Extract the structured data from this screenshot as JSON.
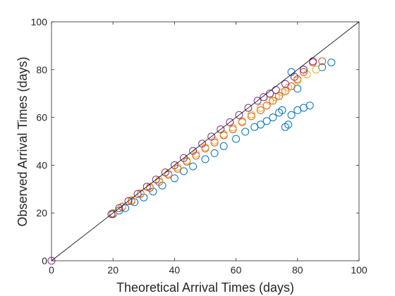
{
  "chart_data": {
    "type": "scatter",
    "title": "",
    "xlabel": "Theoretical Arrival Times (days)",
    "ylabel": "Observed Arrival Times (days)",
    "xlim": [
      0,
      100
    ],
    "ylim": [
      0,
      100
    ],
    "xticks": [
      0,
      20,
      40,
      60,
      80,
      100
    ],
    "yticks": [
      0,
      20,
      40,
      60,
      80,
      100
    ],
    "grid": false,
    "legend": "none",
    "reference_line": {
      "label": "",
      "x": [
        0,
        100
      ],
      "y": [
        0,
        100
      ],
      "color": "#000000"
    },
    "series": [
      {
        "color": "#0072BD",
        "marker": "circle",
        "x": [
          20,
          22,
          24,
          27,
          30,
          33,
          36,
          40,
          43,
          46,
          50,
          53,
          56,
          60,
          63,
          66,
          68,
          70,
          72,
          74,
          75,
          76,
          77,
          78,
          80,
          82,
          84,
          80,
          88,
          91,
          78
        ],
        "y": [
          19.5,
          21.0,
          22.0,
          24.5,
          26.5,
          29.0,
          31.5,
          34.5,
          37.5,
          39.5,
          42.5,
          45.0,
          48.0,
          51.0,
          54.0,
          56.0,
          57.0,
          58.5,
          60.0,
          62.0,
          63.0,
          56.0,
          57.0,
          61.0,
          63.0,
          64.0,
          65.0,
          72.0,
          81.0,
          83.0,
          79.0
        ]
      },
      {
        "color": "#D95319",
        "marker": "circle",
        "x": [
          20,
          23,
          26,
          29,
          32,
          35,
          38,
          41,
          44,
          47,
          50,
          53,
          56,
          59,
          62,
          65,
          68,
          70,
          72,
          74,
          76,
          78,
          80,
          82,
          85,
          88
        ],
        "y": [
          19.8,
          22.5,
          25.0,
          28.0,
          30.5,
          33.0,
          36.0,
          38.5,
          41.5,
          44.0,
          47.0,
          49.5,
          52.5,
          55.0,
          58.0,
          60.5,
          63.0,
          65.0,
          67.0,
          69.0,
          71.0,
          73.0,
          76.0,
          79.0,
          83.0,
          83.5
        ]
      },
      {
        "color": "#EDB120",
        "marker": "circle",
        "x": [
          20,
          23,
          26,
          29,
          32,
          35,
          38,
          41,
          44,
          47,
          50,
          53,
          56,
          59,
          62,
          65,
          68,
          71,
          73,
          75,
          77,
          80,
          83,
          86
        ],
        "y": [
          20.0,
          22.8,
          25.5,
          28.3,
          31.0,
          33.8,
          36.5,
          39.3,
          42.0,
          44.8,
          47.5,
          50.3,
          53.0,
          55.8,
          58.5,
          61.3,
          64.0,
          66.8,
          68.5,
          70.5,
          72.5,
          75.5,
          78.0,
          80.0
        ]
      },
      {
        "color": "#7E2F8E",
        "marker": "circle",
        "x": [
          0,
          19.5,
          22,
          25,
          28,
          31,
          34,
          37,
          40,
          43,
          46,
          49,
          52,
          55,
          58,
          61,
          64,
          67,
          69,
          71,
          73,
          76,
          79,
          82,
          85
        ],
        "y": [
          0,
          19.5,
          22.0,
          25.0,
          28.0,
          31.0,
          34.0,
          37.0,
          40.0,
          43.0,
          46.0,
          49.0,
          52.0,
          55.0,
          58.0,
          61.0,
          64.0,
          67.0,
          68.5,
          70.0,
          71.5,
          74.0,
          77.0,
          80.0,
          83.5
        ]
      }
    ]
  }
}
